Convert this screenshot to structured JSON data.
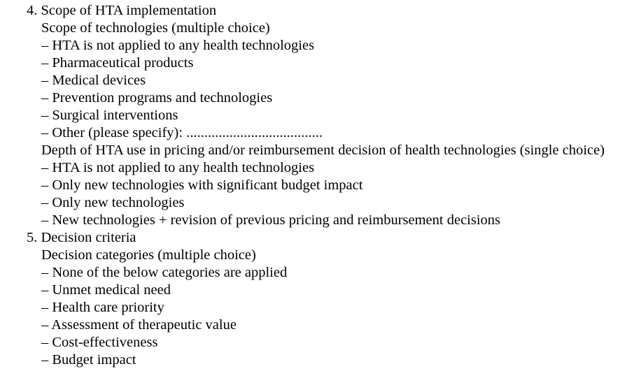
{
  "section4": {
    "heading": "4. Scope of HTA implementation",
    "scope": {
      "title": "Scope of technologies (multiple choice)",
      "options": [
        "– HTA is not applied to any health technologies",
        "– Pharmaceutical products",
        "– Medical devices",
        "– Prevention programs and technologies",
        "– Surgical interventions",
        "– Other (please specify): ......................................"
      ]
    },
    "depth": {
      "title": "Depth of HTA use in pricing and/or reimbursement decision of health technologies (single choice)",
      "options": [
        "– HTA is not applied to any health technologies",
        "– Only new technologies with significant budget impact",
        "– Only new technologies",
        "– New technologies + revision of previous pricing and reimbursement decisions"
      ]
    }
  },
  "section5": {
    "heading": "5. Decision criteria",
    "categories": {
      "title": "Decision categories (multiple choice)",
      "options": [
        "– None of the below categories are applied",
        "– Unmet medical need",
        "– Health care priority",
        "– Assessment of therapeutic value",
        "– Cost-effectiveness",
        "– Budget impact"
      ]
    }
  }
}
